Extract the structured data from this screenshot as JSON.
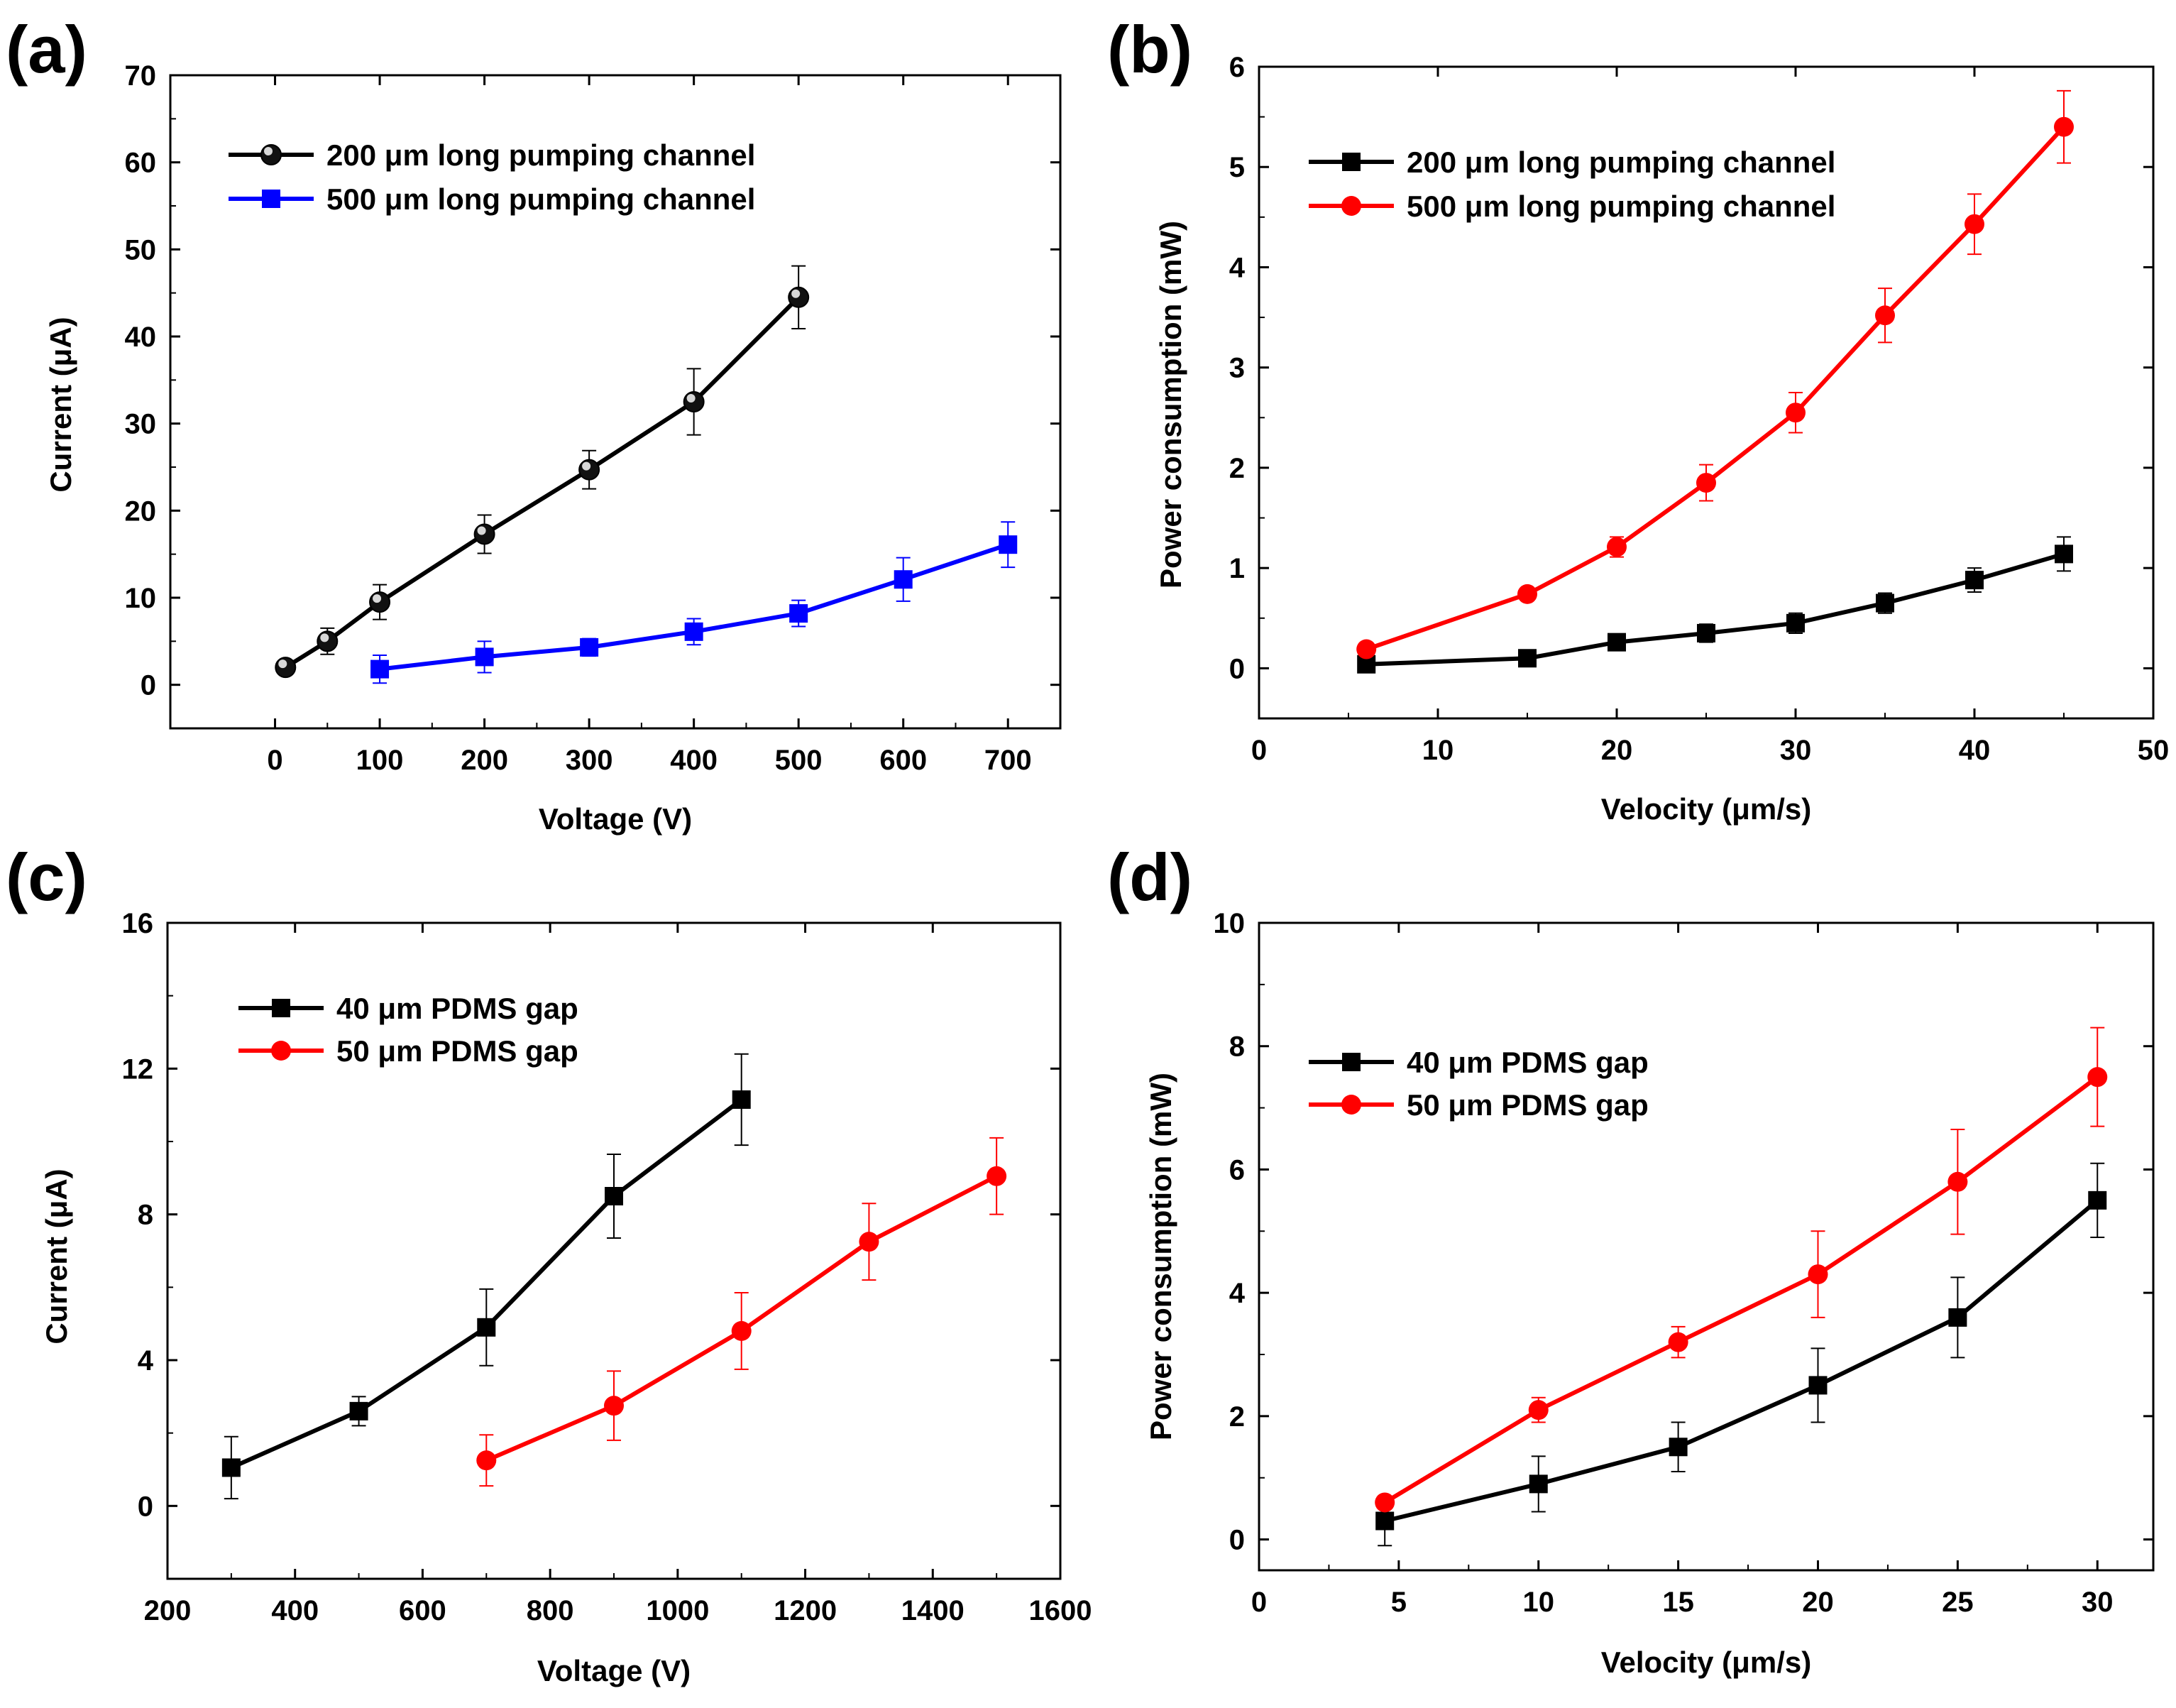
{
  "chart_data": [
    {
      "id": "a",
      "type": "line",
      "panel_label": "(a)",
      "xlabel": "Voltage (V)",
      "ylabel": "Current (μA)",
      "xlim": [
        -100,
        750
      ],
      "ylim": [
        -5,
        70
      ],
      "xticks": [
        0,
        100,
        200,
        300,
        400,
        500,
        600,
        700
      ],
      "yticks": [
        0,
        10,
        20,
        30,
        40,
        50,
        60,
        70
      ],
      "grid": false,
      "legend_position": "top-left",
      "series": [
        {
          "name": "200 μm long pumping channel",
          "color": "#000000",
          "marker": "sphere",
          "x": [
            10,
            50,
            100,
            200,
            300,
            400,
            500
          ],
          "y": [
            2,
            5,
            9.5,
            17.3,
            24.7,
            32.5,
            44.5
          ],
          "err": [
            0.5,
            1.5,
            2,
            2.2,
            2.2,
            3.8,
            3.6
          ]
        },
        {
          "name": "500 μm long pumping channel",
          "color": "#0000ff",
          "marker": "square",
          "x": [
            100,
            200,
            300,
            400,
            500,
            600,
            700
          ],
          "y": [
            1.8,
            3.2,
            4.3,
            6.1,
            8.2,
            12.1,
            16.1
          ],
          "err": [
            1.6,
            1.8,
            1,
            1.5,
            1.5,
            2.5,
            2.6
          ]
        }
      ]
    },
    {
      "id": "b",
      "type": "line",
      "panel_label": "(b)",
      "xlabel": "Velocity (μm/s)",
      "ylabel": "Power consumption (mW)",
      "xlim": [
        0,
        50
      ],
      "ylim": [
        -0.5,
        6
      ],
      "xticks": [
        0,
        10,
        20,
        30,
        40,
        50
      ],
      "yticks": [
        0,
        1,
        2,
        3,
        4,
        5,
        6
      ],
      "grid": false,
      "legend_position": "top-left",
      "series": [
        {
          "name": "200 μm long pumping channel",
          "color": "#000000",
          "marker": "square",
          "x": [
            6,
            15,
            20,
            25,
            30,
            35,
            40,
            45
          ],
          "y": [
            0.04,
            0.1,
            0.26,
            0.35,
            0.45,
            0.65,
            0.88,
            1.14
          ],
          "err": [
            0.03,
            0.04,
            0.08,
            0.09,
            0.1,
            0.1,
            0.12,
            0.17
          ]
        },
        {
          "name": "500 μm long pumping channel",
          "color": "#ff0000",
          "marker": "circle",
          "x": [
            6,
            15,
            20,
            25,
            30,
            35,
            40,
            45
          ],
          "y": [
            0.19,
            0.74,
            1.21,
            1.85,
            2.55,
            3.52,
            4.43,
            5.4
          ],
          "err": [
            0.03,
            0.05,
            0.1,
            0.18,
            0.2,
            0.27,
            0.3,
            0.36
          ]
        }
      ]
    },
    {
      "id": "c",
      "type": "line",
      "panel_label": "(c)",
      "xlabel": "Voltage (V)",
      "ylabel": "Current (μA)",
      "xlim": [
        200,
        1600
      ],
      "ylim": [
        -2,
        16
      ],
      "xticks": [
        200,
        400,
        600,
        800,
        1000,
        1200,
        1400,
        1600
      ],
      "yticks": [
        0,
        4,
        8,
        12,
        16
      ],
      "grid": false,
      "legend_position": "top-left",
      "series": [
        {
          "name": "40 μm PDMS gap",
          "color": "#000000",
          "marker": "square",
          "x": [
            300,
            500,
            700,
            900,
            1100
          ],
          "y": [
            1.05,
            2.6,
            4.9,
            8.5,
            11.15
          ],
          "err": [
            0.85,
            0.4,
            1.05,
            1.15,
            1.25
          ]
        },
        {
          "name": "50 μm PDMS gap",
          "color": "#ff0000",
          "marker": "circle",
          "x": [
            700,
            900,
            1100,
            1300,
            1500
          ],
          "y": [
            1.25,
            2.75,
            4.8,
            7.25,
            9.05
          ],
          "err": [
            0.7,
            0.95,
            1.05,
            1.05,
            1.05
          ]
        }
      ]
    },
    {
      "id": "d",
      "type": "line",
      "panel_label": "(d)",
      "xlabel": "Velocity (μm/s)",
      "ylabel": "Power consumption (mW)",
      "xlim": [
        0,
        32
      ],
      "ylim": [
        -0.5,
        10
      ],
      "xticks": [
        0,
        5,
        10,
        15,
        20,
        25,
        30
      ],
      "yticks": [
        0,
        2,
        4,
        6,
        8,
        10
      ],
      "grid": false,
      "legend_position": "top-left",
      "series": [
        {
          "name": "40 μm PDMS gap",
          "color": "#000000",
          "marker": "square",
          "x": [
            4.5,
            10,
            15,
            20,
            25,
            30
          ],
          "y": [
            0.3,
            0.9,
            1.5,
            2.5,
            3.6,
            5.5
          ],
          "err": [
            0.4,
            0.45,
            0.4,
            0.6,
            0.65,
            0.6
          ]
        },
        {
          "name": "50 μm PDMS gap",
          "color": "#ff0000",
          "marker": "circle",
          "x": [
            4.5,
            10,
            15,
            20,
            25,
            30
          ],
          "y": [
            0.6,
            2.1,
            3.2,
            4.3,
            5.8,
            7.5
          ],
          "err": [
            0.1,
            0.2,
            0.25,
            0.7,
            0.85,
            0.8
          ]
        }
      ]
    }
  ]
}
